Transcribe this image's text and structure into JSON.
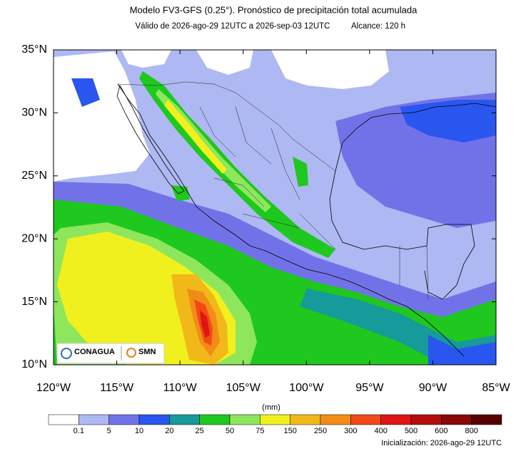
{
  "title": "Modelo FV3-GFS (0.25°). Pronóstico de precipitación total acumulada",
  "subtitle_valid": "Válido de 2026-ago-29 12UTC a 2026-sep-03 12UTC",
  "subtitle_range": "Alcance: 120 h",
  "map": {
    "lon_ticks": [
      "120°W",
      "115°W",
      "110°W",
      "105°W",
      "100°W",
      "95°W",
      "90°W",
      "85°W"
    ],
    "lat_ticks": [
      "35°N",
      "30°N",
      "25°N",
      "20°N",
      "15°N",
      "10°N"
    ]
  },
  "colorbar": {
    "unit": "(mm)",
    "levels": [
      0.1,
      5,
      10,
      20,
      25,
      50,
      75,
      150,
      250,
      300,
      400,
      500,
      600,
      800
    ],
    "colors": [
      "#ffffff",
      "#aeb8f2",
      "#7272e8",
      "#2a56f0",
      "#169a9a",
      "#1ec81e",
      "#8ee65c",
      "#f0f01e",
      "#f2b81a",
      "#f28c16",
      "#f04a16",
      "#e01414",
      "#b40c0c",
      "#8a0808",
      "#560000"
    ]
  },
  "logos": {
    "conagua": "CONAGUA",
    "smn": "SMN"
  },
  "initialization": "Inicialización: 2026-ago-29 12UTC"
}
